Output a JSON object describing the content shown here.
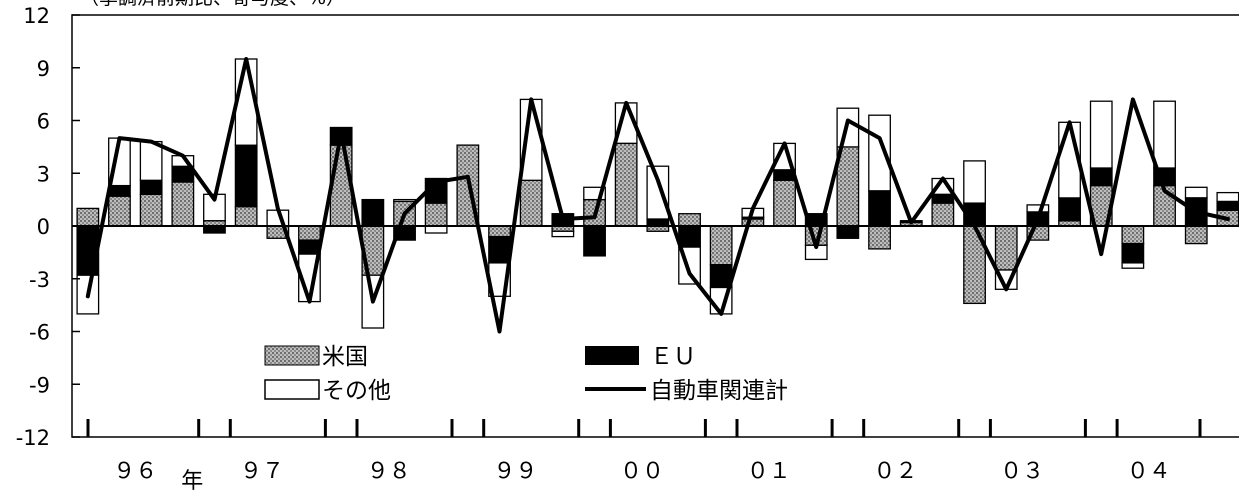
{
  "chart_data": {
    "type": "bar",
    "stacked": true,
    "unit_label": "（季調済前期比、寄与度、%）",
    "ylim": [
      -12,
      12
    ],
    "yticks": [
      12,
      9,
      6,
      3,
      0,
      -3,
      -6,
      -9,
      -12
    ],
    "x": [
      "96Q1",
      "96Q2",
      "96Q3",
      "96Q4",
      "97Q1",
      "97Q2",
      "97Q3",
      "97Q4",
      "98Q1",
      "98Q2",
      "98Q3",
      "98Q4",
      "99Q1",
      "99Q2",
      "99Q3",
      "99Q4",
      "00Q1",
      "00Q2",
      "00Q3",
      "00Q4",
      "01Q1",
      "01Q2",
      "01Q3",
      "01Q4",
      "02Q1",
      "02Q2",
      "02Q3",
      "02Q4",
      "03Q1",
      "03Q2",
      "03Q3",
      "03Q4",
      "04Q1",
      "04Q2",
      "04Q3",
      "04Q4",
      "05Q1"
    ],
    "year_labels": [
      {
        "label": "９６",
        "index": 1.5
      },
      {
        "label": "年",
        "index": 3.3
      },
      {
        "label": "９７",
        "index": 5.5
      },
      {
        "label": "９８",
        "index": 9.5
      },
      {
        "label": "９９",
        "index": 13.5
      },
      {
        "label": "００",
        "index": 17.5
      },
      {
        "label": "０１",
        "index": 21.5
      },
      {
        "label": "０２",
        "index": 25.5
      },
      {
        "label": "０３",
        "index": 29.5
      },
      {
        "label": "０４",
        "index": 33.5
      }
    ],
    "year_ticks": [
      3.5,
      4.5,
      7.5,
      8.5,
      11.5,
      12.5,
      15.5,
      16.5,
      19.5,
      20.5,
      23.5,
      24.5,
      27.5,
      28.5,
      31.5,
      32.5
    ],
    "series": [
      {
        "name": "米国",
        "style": "gray",
        "values": [
          1.0,
          1.7,
          1.8,
          2.5,
          0.3,
          1.1,
          -0.7,
          -0.8,
          4.6,
          -2.8,
          1.4,
          1.3,
          4.6,
          -0.6,
          2.6,
          -0.3,
          1.5,
          4.7,
          -0.3,
          0.7,
          -2.2,
          0.4,
          2.6,
          -1.1,
          4.5,
          -1.3,
          0.2,
          1.3,
          -4.4,
          -2.5,
          -0.8,
          0.3,
          2.3,
          -1.0,
          2.3,
          -1.0,
          0.9
        ]
      },
      {
        "name": "ＥＵ",
        "style": "black",
        "values": [
          -2.8,
          0.6,
          0.8,
          0.9,
          -0.4,
          3.5,
          0.0,
          -0.8,
          1.0,
          1.5,
          -0.8,
          1.4,
          0.0,
          -1.5,
          0.0,
          0.7,
          -1.7,
          0.0,
          0.4,
          -1.2,
          -1.3,
          0.1,
          0.6,
          0.7,
          -0.7,
          2.0,
          0.1,
          0.5,
          1.3,
          0.0,
          0.8,
          1.3,
          1.0,
          -1.1,
          1.0,
          1.6,
          0.5
        ]
      },
      {
        "name": "その他",
        "style": "white",
        "values": [
          -2.2,
          2.7,
          2.2,
          0.6,
          1.5,
          4.9,
          0.9,
          -2.7,
          0.0,
          -3.0,
          0.1,
          -0.4,
          0.0,
          -1.9,
          4.6,
          -0.3,
          0.7,
          2.3,
          3.0,
          -2.1,
          -1.5,
          0.5,
          1.5,
          -0.8,
          2.2,
          4.3,
          0.0,
          0.9,
          2.4,
          -1.1,
          0.4,
          4.3,
          3.8,
          -0.3,
          3.8,
          0.6,
          0.5
        ]
      }
    ],
    "line": {
      "name": "自動車関連計",
      "values": [
        -4.0,
        5.0,
        4.8,
        4.0,
        1.5,
        9.5,
        1.0,
        -4.3,
        5.3,
        -4.3,
        0.7,
        2.5,
        2.8,
        -6.0,
        7.2,
        0.4,
        0.5,
        7.0,
        2.6,
        -2.7,
        -5.0,
        1.0,
        4.7,
        -1.2,
        6.0,
        5.0,
        0.2,
        2.7,
        0.0,
        -3.6,
        0.4,
        5.9,
        -1.6,
        7.2,
        2.0,
        0.8,
        0.4
      ]
    },
    "legend": [
      {
        "label": "米国",
        "style": "gray"
      },
      {
        "label": "ＥＵ",
        "style": "black"
      },
      {
        "label": "その他",
        "style": "white"
      },
      {
        "label": "自動車関連計",
        "style": "line"
      }
    ],
    "colors": {
      "black": "#000000",
      "gray": "#a8a8a8",
      "white": "#ffffff"
    }
  }
}
